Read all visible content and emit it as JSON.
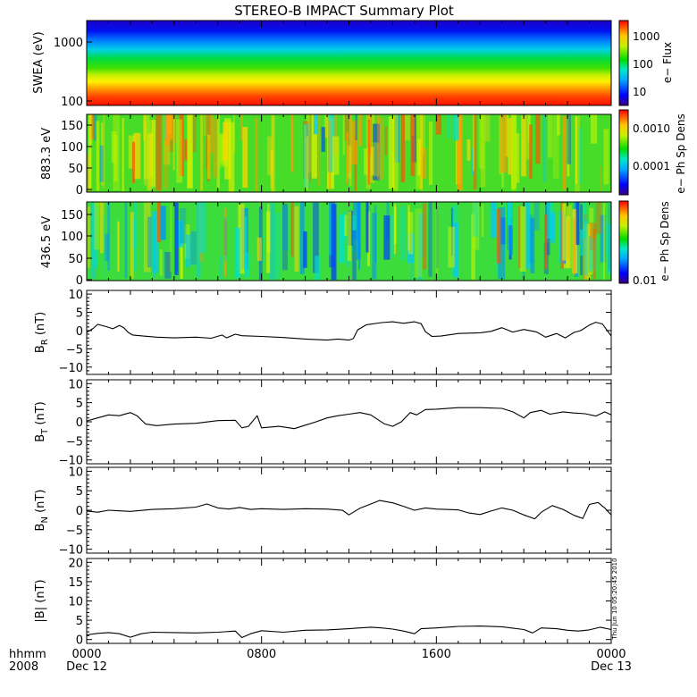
{
  "chart_data": {
    "type": "summary-plot",
    "title": "STEREO-B IMPACT Summary Plot",
    "x_axis": {
      "row1_label": "hhmm",
      "row2_label": "2008",
      "ticks": [
        {
          "time": "0000",
          "date": "Dec 12",
          "hours": 0
        },
        {
          "time": "0800",
          "date": "",
          "hours": 8
        },
        {
          "time": "1600",
          "date": "",
          "hours": 16
        },
        {
          "time": "0000",
          "date": "Dec 13",
          "hours": 24
        }
      ],
      "range_hours": [
        0,
        24
      ]
    },
    "spectrograms": [
      {
        "ylabel": "SWEA (eV)",
        "yscale": "log",
        "ylim": [
          100,
          2000
        ],
        "yticks": [
          "1000",
          "100"
        ],
        "colorbar_label": "e− Flux",
        "colorbar_ticks": [
          "1000",
          "100",
          "10"
        ],
        "description": "energy spectrum; red at low energy, blue at high energy"
      },
      {
        "ylabel": "883.3 eV",
        "ylim": [
          0,
          180
        ],
        "yticks": [
          "150",
          "100",
          "50",
          "0"
        ],
        "colorbar_label": "e− Ph Sp Dens",
        "colorbar_ticks": [
          "0.0010",
          "0.0001"
        ]
      },
      {
        "ylabel": "436.5 eV",
        "ylim": [
          0,
          180
        ],
        "yticks": [
          "150",
          "100",
          "50",
          "0"
        ],
        "colorbar_label": "e− Ph Sp Dens",
        "colorbar_ticks": [
          "0.01"
        ]
      }
    ],
    "line_panels": [
      {
        "ylabel_main": "B",
        "ylabel_sub": "R",
        "ylabel_unit": " (nT)",
        "ylim": [
          -12,
          11
        ],
        "yticks": [
          "10",
          "5",
          "0",
          "−5",
          "−10"
        ],
        "series": [
          [
            0,
            -0.5
          ],
          [
            0.3,
            0.6
          ],
          [
            0.5,
            1.7
          ],
          [
            0.9,
            1.1
          ],
          [
            1.2,
            0.5
          ],
          [
            1.5,
            1.4
          ],
          [
            1.7,
            0.8
          ],
          [
            1.9,
            -0.5
          ],
          [
            2.1,
            -1.2
          ],
          [
            2.6,
            -1.5
          ],
          [
            3.2,
            -1.8
          ],
          [
            4.0,
            -2.0
          ],
          [
            5.0,
            -1.8
          ],
          [
            5.7,
            -2.1
          ],
          [
            6.2,
            -1.2
          ],
          [
            6.4,
            -2.0
          ],
          [
            6.8,
            -1.0
          ],
          [
            7.1,
            -1.4
          ],
          [
            8.0,
            -1.6
          ],
          [
            9.0,
            -1.9
          ],
          [
            10.0,
            -2.3
          ],
          [
            11.0,
            -2.6
          ],
          [
            11.5,
            -2.3
          ],
          [
            12.0,
            -2.6
          ],
          [
            12.2,
            -2.2
          ],
          [
            12.4,
            0.2
          ],
          [
            12.8,
            1.6
          ],
          [
            13.5,
            2.2
          ],
          [
            14.0,
            2.4
          ],
          [
            14.5,
            2.0
          ],
          [
            15.0,
            2.4
          ],
          [
            15.3,
            1.9
          ],
          [
            15.5,
            -0.3
          ],
          [
            15.8,
            -1.6
          ],
          [
            16.2,
            -1.5
          ],
          [
            17.0,
            -0.8
          ],
          [
            18.0,
            -0.6
          ],
          [
            18.5,
            -0.2
          ],
          [
            19.0,
            0.8
          ],
          [
            19.5,
            -0.4
          ],
          [
            20.0,
            0.3
          ],
          [
            20.6,
            -0.4
          ],
          [
            21.0,
            -1.8
          ],
          [
            21.5,
            -0.8
          ],
          [
            21.9,
            -2.0
          ],
          [
            22.3,
            -0.5
          ],
          [
            22.6,
            0.0
          ],
          [
            23.0,
            1.5
          ],
          [
            23.3,
            2.3
          ],
          [
            23.6,
            1.8
          ],
          [
            24.0,
            -1.5
          ]
        ]
      },
      {
        "ylabel_main": "B",
        "ylabel_sub": "T",
        "ylabel_unit": " (nT)",
        "ylim": [
          -11,
          11
        ],
        "yticks": [
          "10",
          "5",
          "0",
          "−5",
          "−10"
        ],
        "series": [
          [
            0,
            0.2
          ],
          [
            0.5,
            1.0
          ],
          [
            1.0,
            1.8
          ],
          [
            1.5,
            1.6
          ],
          [
            2.0,
            2.4
          ],
          [
            2.3,
            1.6
          ],
          [
            2.7,
            -0.6
          ],
          [
            3.2,
            -1.0
          ],
          [
            4.0,
            -0.6
          ],
          [
            5.0,
            -0.4
          ],
          [
            6.0,
            0.3
          ],
          [
            6.8,
            0.4
          ],
          [
            7.1,
            -1.6
          ],
          [
            7.4,
            -1.2
          ],
          [
            7.8,
            1.6
          ],
          [
            8.0,
            -1.6
          ],
          [
            8.8,
            -1.2
          ],
          [
            9.5,
            -1.8
          ],
          [
            10.0,
            -0.9
          ],
          [
            10.5,
            0.0
          ],
          [
            11.0,
            1.0
          ],
          [
            11.5,
            1.6
          ],
          [
            12.0,
            2.0
          ],
          [
            12.5,
            2.4
          ],
          [
            13.0,
            1.8
          ],
          [
            13.6,
            -0.5
          ],
          [
            14.0,
            -1.2
          ],
          [
            14.4,
            0.0
          ],
          [
            14.8,
            2.4
          ],
          [
            15.1,
            1.8
          ],
          [
            15.5,
            3.2
          ],
          [
            16.0,
            3.3
          ],
          [
            17.0,
            3.7
          ],
          [
            18.0,
            3.7
          ],
          [
            19.0,
            3.5
          ],
          [
            19.5,
            2.6
          ],
          [
            20.0,
            1.0
          ],
          [
            20.3,
            2.4
          ],
          [
            20.8,
            3.0
          ],
          [
            21.2,
            2.0
          ],
          [
            21.8,
            2.6
          ],
          [
            22.3,
            2.3
          ],
          [
            22.8,
            2.1
          ],
          [
            23.3,
            1.5
          ],
          [
            23.7,
            2.6
          ],
          [
            24.0,
            1.8
          ]
        ]
      },
      {
        "ylabel_main": "B",
        "ylabel_sub": "N",
        "ylabel_unit": " (nT)",
        "ylim": [
          -11,
          11
        ],
        "yticks": [
          "10",
          "5",
          "0",
          "−5",
          "−10"
        ],
        "series": [
          [
            0,
            -0.2
          ],
          [
            0.5,
            -0.5
          ],
          [
            1.0,
            0.0
          ],
          [
            2.0,
            -0.3
          ],
          [
            3.0,
            0.2
          ],
          [
            4.0,
            0.4
          ],
          [
            5.0,
            0.8
          ],
          [
            5.5,
            1.6
          ],
          [
            6.0,
            0.6
          ],
          [
            6.5,
            0.3
          ],
          [
            7.0,
            0.7
          ],
          [
            7.5,
            0.2
          ],
          [
            8.0,
            0.4
          ],
          [
            9.0,
            0.2
          ],
          [
            10.0,
            0.4
          ],
          [
            11.0,
            0.3
          ],
          [
            11.7,
            0.0
          ],
          [
            12.0,
            -1.2
          ],
          [
            12.5,
            0.5
          ],
          [
            13.0,
            1.6
          ],
          [
            13.4,
            2.5
          ],
          [
            14.0,
            1.9
          ],
          [
            14.5,
            1.0
          ],
          [
            15.0,
            0.0
          ],
          [
            15.5,
            0.6
          ],
          [
            16.0,
            0.3
          ],
          [
            17.0,
            0.1
          ],
          [
            17.5,
            -0.7
          ],
          [
            18.0,
            -1.1
          ],
          [
            18.5,
            -0.2
          ],
          [
            19.0,
            0.6
          ],
          [
            19.5,
            0.0
          ],
          [
            20.0,
            -1.2
          ],
          [
            20.5,
            -2.2
          ],
          [
            20.8,
            -0.5
          ],
          [
            21.3,
            1.2
          ],
          [
            21.8,
            0.2
          ],
          [
            22.3,
            -1.3
          ],
          [
            22.7,
            -2.1
          ],
          [
            23.0,
            1.5
          ],
          [
            23.4,
            2.0
          ],
          [
            23.7,
            0.6
          ],
          [
            24.0,
            -1.2
          ]
        ]
      },
      {
        "ylabel_main": "|B|",
        "ylabel_sub": "",
        "ylabel_unit": " (nT)",
        "ylim": [
          -1,
          21
        ],
        "yticks": [
          "20",
          "15",
          "10",
          "5",
          "0"
        ],
        "series": [
          [
            0,
            1.2
          ],
          [
            0.5,
            1.6
          ],
          [
            1.0,
            1.8
          ],
          [
            1.5,
            1.5
          ],
          [
            2.0,
            0.6
          ],
          [
            2.5,
            1.5
          ],
          [
            3.0,
            1.9
          ],
          [
            4.0,
            1.8
          ],
          [
            5.0,
            1.7
          ],
          [
            6.0,
            1.9
          ],
          [
            6.8,
            2.2
          ],
          [
            7.1,
            0.5
          ],
          [
            7.5,
            1.5
          ],
          [
            8.0,
            2.3
          ],
          [
            9.0,
            1.9
          ],
          [
            10.0,
            2.4
          ],
          [
            11.0,
            2.5
          ],
          [
            12.0,
            2.8
          ],
          [
            12.5,
            3.0
          ],
          [
            13.0,
            3.2
          ],
          [
            13.5,
            3.0
          ],
          [
            14.0,
            2.7
          ],
          [
            14.5,
            2.2
          ],
          [
            15.0,
            1.5
          ],
          [
            15.3,
            2.8
          ],
          [
            16.0,
            3.0
          ],
          [
            17.0,
            3.4
          ],
          [
            18.0,
            3.5
          ],
          [
            19.0,
            3.3
          ],
          [
            20.0,
            2.6
          ],
          [
            20.4,
            1.7
          ],
          [
            20.8,
            3.0
          ],
          [
            21.5,
            2.8
          ],
          [
            22.0,
            2.4
          ],
          [
            22.5,
            2.2
          ],
          [
            23.0,
            2.5
          ],
          [
            23.5,
            3.2
          ],
          [
            24.0,
            2.6
          ]
        ]
      }
    ],
    "footer_note": "Thu Jun 10 05:20:45 2010"
  }
}
